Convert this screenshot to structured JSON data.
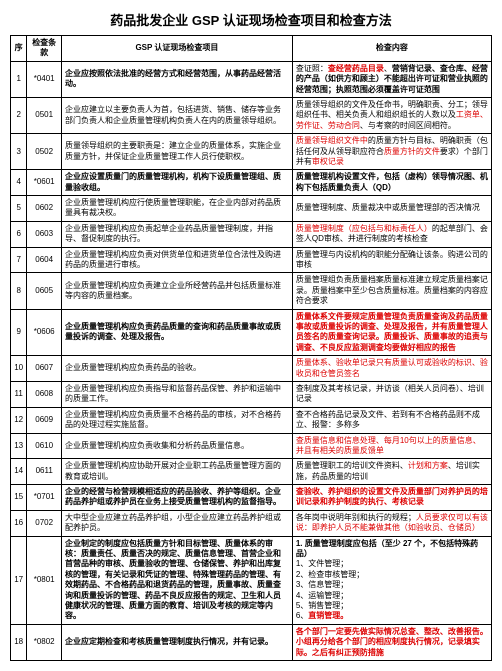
{
  "title": "药品批发企业 GSP 认证现场检查项目和检查方法",
  "headers": {
    "seq": "序",
    "clause": "检查条款",
    "item": "GSP 认证现场检查项目",
    "content": "检查内容"
  },
  "rows": [
    {
      "seq": "1",
      "clause": "*0401",
      "item": "企业应按照依法批准的经营方式和经营范围，从事药品经营活动。",
      "item_bold": true,
      "content": "查证照：<span class='red bold'>查经营药品目录</span>、<span class='bold'>营销背记录、查仓库、经营的产品（如供方和顾主）不能超出许可证和营业执照的经营范围；执照范围必须覆盖许可证范围</span>"
    },
    {
      "seq": "2",
      "clause": "0501",
      "item": "企业应建立以主要负责人为首，包括进货、销售、储存等业务部门负责人和企业质量管理机构负责人在内的质量领导组织。",
      "content": "质量领导组织的文件及任命书，明确职责、分工；领导组织任书、相关负责人和组织组长的人数以及<span class='red'>工资单、劳作证、劳动合同</span>、与考察的时间区间相符。"
    },
    {
      "seq": "3",
      "clause": "0502",
      "item": "质量领导组织的主要职责是：建立企业的质量体系，实施企业质量方针，并保证企业质量管理工作人员行使职权。",
      "content": "<span class='red'>质量领导组织文件中</span>的质量方针与目标、明确职责（包括任何及从领导职应符合<span class='red'>质量方针的文件</span>要求）个部门并有<span class='red'>审权记录</span>"
    },
    {
      "seq": "4",
      "clause": "*0601",
      "item": "企业应设置质量门的质量管理机构，机构下设质量管理组、质量验收组。",
      "item_bold": true,
      "content": "<span class='bold'>质量管理机构设置文件，包括（虚构）领导情况图、机构下包括质量负责人（QD）</span>"
    },
    {
      "seq": "5",
      "clause": "0602",
      "item": "企业质量管理机构应行使质量管理职能，在企业内部对药品质量具有裁决权。",
      "content": "质量管理制度、质量裁决中或质量管理部的否决情况"
    },
    {
      "seq": "6",
      "clause": "0603",
      "item": "企业质量管理机构应负责起草企业药品质量管理制度，并指导、督促制度的执行。",
      "content": "<span class='red'>质量管理制度（应包括与和标责任人）</span>的起草部门、会签人QD审核、并进行制度的考核检查"
    },
    {
      "seq": "7",
      "clause": "0604",
      "item": "企业质量管理机构应负责对供货单位和进货单位合法性及购进药品的质量进行审核。",
      "content": "质量管理与内设机构的职能分配确让该条。购进公司的审核"
    },
    {
      "seq": "8",
      "clause": "0605",
      "item": "企业质量管理机构应负责建立企业所经营药品并包括质量标准等内容的质量档案。",
      "content": "质量管理组负责质量档案质量标准建立规定质量档案记录。质量档案中至少包含质量标准。质量档案的内容应符合要求"
    },
    {
      "seq": "9",
      "clause": "*0606",
      "item": "企业质量管理机构应负责药品质量的查询和药品质量事故或质量投诉的调查、处理及报告。",
      "item_bold": true,
      "content": "<span class='red bold'>质量体系文件要规定质量管理负责质量查询及药品质量事故或质量投诉的调查、处理及报告，并有质量管理人员签名的质量查询记录。质量投诉、质量事故的追责与调查、不良反应监测调查均要做好相应的报告</span>"
    },
    {
      "seq": "10",
      "clause": "0607",
      "item": "企业质量管理机构应负责药品的验收。",
      "content": "<span class='red'>质量体系、验收单记录只有质量认可或验收的标识、验收员和仓管员签名</span>"
    },
    {
      "seq": "11",
      "clause": "0608",
      "item": "企业质量管理机构应负责指导和监督药品保管、养护和运输中的质量工作。",
      "content": "查制度及其考核记录，并访谈（相关人员问卷）、培训记录"
    },
    {
      "seq": "12",
      "clause": "0609",
      "item": "企业质量管理机构应负责质量不合格药品的审核，对不合格药品的处理过程实施监督。",
      "content": "查不合格药品记录及文件、若到有不合格药品则不成立、报警：多称多"
    },
    {
      "seq": "13",
      "clause": "0610",
      "item": "企业质量管理机构应负责收集和分析药品质量信息。",
      "content": "<span class='red'>查质量信息和信息处理、每月10句以上的质量信息、并且有相关的质量反馈单</span>"
    },
    {
      "seq": "14",
      "clause": "0611",
      "item": "企业质量管理机构应协助开展对企业职工药品质量管理方面的教育或培训。",
      "content": "质量管理职工的培训文件资料、<span class='red'>计划和方案</span>、培训实施，药品质量的培训"
    },
    {
      "seq": "15",
      "clause": "*0701",
      "item": "企业的经营与检营规模相适应的药品验收、养护等组织。企业药品养护组或养护员在业务上接受质量管理机构的监督指导。",
      "item_bold": true,
      "content": "<span class='bold red'>查验收、养护组织的设置文件及质量部门对养护员的培训记录和养护制度的执行、考核记录</span>"
    },
    {
      "seq": "16",
      "clause": "0702",
      "item": "大中型企业应建立药品养护组，小型企业应建立药品养护组或配养护员。",
      "content": "各年岗中说明年别和执行的规程；<span class='red'>人员要求仅可以有该说：即养护人员不能兼做其他（如验收员、仓储员）</span>"
    },
    {
      "seq": "17",
      "clause": "*0801",
      "item": "企业制定的制度应包括质量方针和目标管理、质量体系的审核：质量责任、质量否决的规定、质量信息管理、首营企业和首营品种的审核、质量验收的管理、仓储保管、养护和出库复核的管理，有关记录和凭证的管理、特殊管理药品的管理、有效期药品、不合格药品和退货药品的管理，质量事故、质量查询和质量投诉的管理、药品不良反应报告的规定、卫生和人员健康状况的管理、质量方面的教育、培训及考核的规定等内容。",
      "item_bold": true,
      "content": "<span class='bold'>1. 质量管理制度应包括（至少 27 个，不包括特殊药品）</span><br>1、文件管理；<br>2、检查审核管理；<br>3、信息管理；<br>4、运输管理；<br>5、销售管理；<br>6、<span class='red bold'>直销管理。</span>"
    },
    {
      "seq": "18",
      "clause": "*0802",
      "item": "企业应定期检查和考核质量管理制度执行情况，并有记录。",
      "item_bold": true,
      "content": "<span class='red bold'>各个部门一定要先做实际情况总查、整改、改善报告。小组再分给各个部门的相应制度执行情况，记录填实际。之后有纠正预防措施</span>"
    }
  ]
}
